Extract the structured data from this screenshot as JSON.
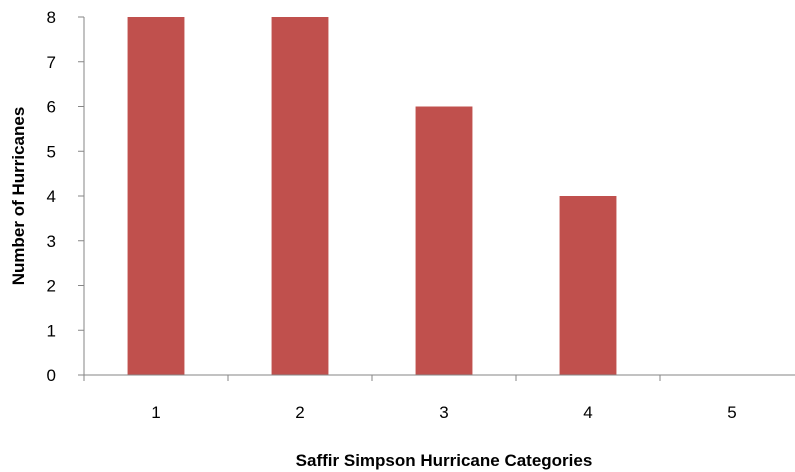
{
  "chart_data": {
    "type": "bar",
    "title": "",
    "xlabel": "Saffir Simpson Hurricane Categories",
    "ylabel": "Number of Hurricanes",
    "categories": [
      "1",
      "2",
      "3",
      "4",
      "5"
    ],
    "values": [
      8,
      8,
      6,
      4,
      0
    ],
    "ylim": [
      0,
      8
    ],
    "yticks": [
      "0",
      "1",
      "2",
      "3",
      "4",
      "5",
      "6",
      "7",
      "8"
    ],
    "grid": false,
    "legend": "none",
    "bar_color": "#C0504D",
    "axis_color": "#868686"
  }
}
